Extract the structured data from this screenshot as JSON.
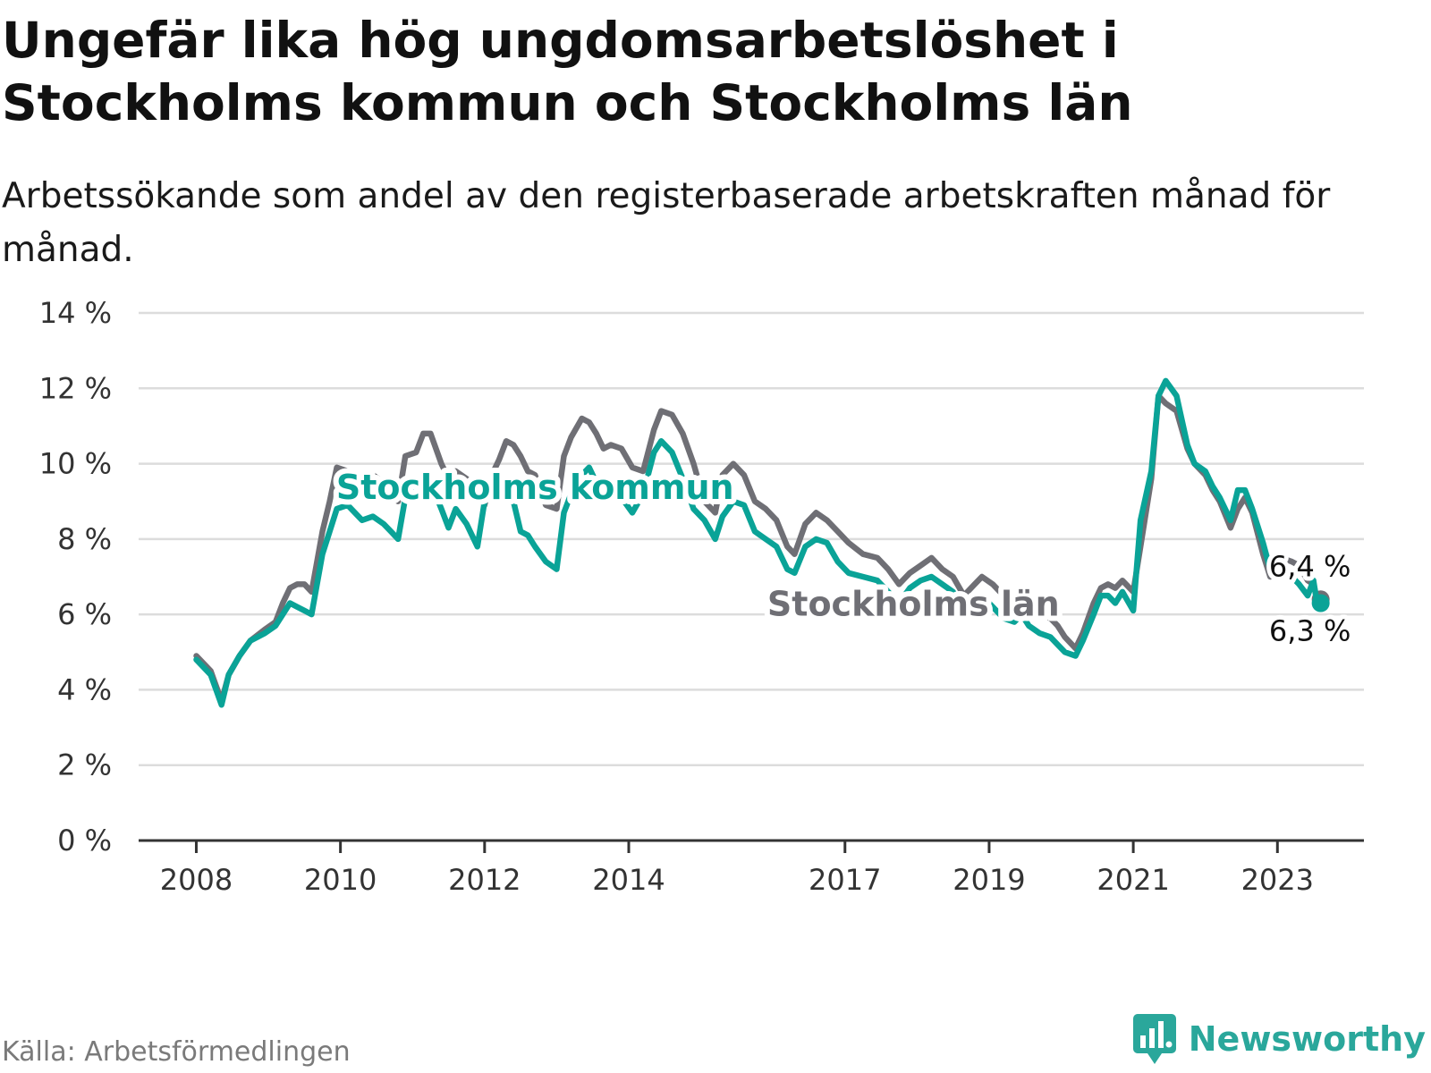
{
  "header": {
    "title": "Ungefär lika hög ungdomsarbetslöshet i Stockholms kommun och Stockholms län",
    "subtitle": "Arbetssökande som andel av den registerbaserade arbetskraften månad för månad."
  },
  "footer": {
    "source": "Källa: Arbetsförmedlingen",
    "brand": "Newsworthy"
  },
  "colors": {
    "kommun": "#0aa397",
    "lan": "#6f6f75",
    "grid": "#dcdcdc",
    "axis": "#333333",
    "brand": "#2aa79b"
  },
  "chart_data": {
    "type": "line",
    "title": "Ungefär lika hög ungdomsarbetslöshet i Stockholms kommun och Stockholms län",
    "xlabel": "",
    "ylabel": "",
    "x_unit": "year (decimal)",
    "xlim": [
      2007.2,
      2024.2
    ],
    "ylim": [
      0,
      14
    ],
    "yticks": [
      0,
      2,
      4,
      6,
      8,
      10,
      12,
      14
    ],
    "ytick_labels": [
      "0 %",
      "2 %",
      "4 %",
      "6 %",
      "8 %",
      "10 %",
      "12 %",
      "14 %"
    ],
    "xticks": [
      2008,
      2010,
      2012,
      2014,
      2017,
      2019,
      2021,
      2023
    ],
    "xtick_labels": [
      "2008",
      "2010",
      "2012",
      "2014",
      "2017",
      "2019",
      "2021",
      "2023"
    ],
    "grid": true,
    "series": [
      {
        "name": "Stockholms län",
        "label": "Stockholms län",
        "color": "#6f6f75",
        "end_label": "6,4 %",
        "x": [
          2008.0,
          2008.1,
          2008.2,
          2008.35,
          2008.45,
          2008.6,
          2008.75,
          2008.95,
          2009.1,
          2009.2,
          2009.3,
          2009.4,
          2009.5,
          2009.6,
          2009.75,
          2009.85,
          2009.95,
          2010.1,
          2010.2,
          2010.3,
          2010.45,
          2010.6,
          2010.7,
          2010.8,
          2010.9,
          2011.05,
          2011.15,
          2011.25,
          2011.4,
          2011.5,
          2011.6,
          2011.75,
          2011.9,
          2012.0,
          2012.1,
          2012.2,
          2012.3,
          2012.4,
          2012.5,
          2012.6,
          2012.7,
          2012.85,
          2013.0,
          2013.1,
          2013.2,
          2013.35,
          2013.45,
          2013.55,
          2013.65,
          2013.75,
          2013.9,
          2014.05,
          2014.2,
          2014.35,
          2014.45,
          2014.6,
          2014.75,
          2014.9,
          2015.05,
          2015.2,
          2015.3,
          2015.45,
          2015.6,
          2015.75,
          2015.9,
          2016.05,
          2016.2,
          2016.3,
          2016.45,
          2016.6,
          2016.75,
          2016.9,
          2017.05,
          2017.25,
          2017.45,
          2017.6,
          2017.75,
          2017.9,
          2018.05,
          2018.2,
          2018.35,
          2018.5,
          2018.65,
          2018.8,
          2018.9,
          2019.05,
          2019.2,
          2019.35,
          2019.45,
          2019.55,
          2019.7,
          2019.85,
          2019.95,
          2020.05,
          2020.2,
          2020.3,
          2020.45,
          2020.55,
          2020.65,
          2020.75,
          2020.85,
          2021.0,
          2021.1,
          2021.25,
          2021.35,
          2021.45,
          2021.6,
          2021.75,
          2021.85,
          2022.0,
          2022.1,
          2022.2,
          2022.35,
          2022.45,
          2022.55,
          2022.65,
          2022.8,
          2022.9,
          2023.05
        ],
        "values": [
          4.9,
          4.7,
          4.5,
          3.7,
          4.4,
          4.9,
          5.3,
          5.6,
          5.8,
          6.3,
          6.7,
          6.8,
          6.8,
          6.6,
          8.2,
          9.0,
          9.9,
          9.8,
          9.6,
          9.7,
          9.7,
          9.5,
          9.1,
          9.0,
          10.2,
          10.3,
          10.8,
          10.8,
          10.0,
          9.6,
          9.8,
          9.6,
          9.2,
          8.9,
          9.7,
          10.1,
          10.6,
          10.5,
          10.2,
          9.8,
          9.7,
          8.9,
          8.8,
          10.2,
          10.7,
          11.2,
          11.1,
          10.8,
          10.4,
          10.5,
          10.4,
          9.9,
          9.8,
          10.9,
          11.4,
          11.3,
          10.8,
          10.0,
          9.0,
          8.7,
          9.7,
          10.0,
          9.7,
          9.0,
          8.8,
          8.5,
          7.8,
          7.6,
          8.4,
          8.7,
          8.5,
          8.2,
          7.9,
          7.6,
          7.5,
          7.2,
          6.8,
          7.1,
          7.3,
          7.5,
          7.2,
          7.0,
          6.5,
          6.8,
          7.0,
          6.8,
          6.5,
          6.4,
          6.6,
          6.2,
          6.0,
          5.9,
          5.7,
          5.4,
          5.1,
          5.5,
          6.3,
          6.7,
          6.8,
          6.7,
          6.9,
          6.6,
          7.8,
          9.6,
          11.8,
          11.6,
          11.4,
          10.4,
          10.0,
          9.7,
          9.3,
          9.0,
          8.3,
          8.8,
          9.1,
          8.7,
          7.6,
          7.0,
          7.5
        ],
        "x_end": [
          2023.05,
          2023.2,
          2023.3,
          2023.42,
          2023.5,
          2023.55,
          2023.6
        ],
        "values_end": [
          7.5,
          7.4,
          7.3,
          6.9,
          6.8,
          6.4,
          6.4
        ]
      },
      {
        "name": "Stockholms kommun",
        "label": "Stockholms kommun",
        "color": "#0aa397",
        "end_label": "6,3 %",
        "x": [
          2008.0,
          2008.1,
          2008.2,
          2008.35,
          2008.45,
          2008.6,
          2008.75,
          2008.95,
          2009.1,
          2009.2,
          2009.3,
          2009.4,
          2009.5,
          2009.6,
          2009.75,
          2009.85,
          2009.95,
          2010.1,
          2010.2,
          2010.3,
          2010.45,
          2010.6,
          2010.7,
          2010.8,
          2010.9,
          2011.05,
          2011.15,
          2011.25,
          2011.4,
          2011.5,
          2011.6,
          2011.75,
          2011.9,
          2012.0,
          2012.1,
          2012.2,
          2012.3,
          2012.4,
          2012.5,
          2012.6,
          2012.7,
          2012.85,
          2013.0,
          2013.1,
          2013.2,
          2013.35,
          2013.45,
          2013.55,
          2013.65,
          2013.75,
          2013.9,
          2014.05,
          2014.2,
          2014.35,
          2014.45,
          2014.6,
          2014.75,
          2014.9,
          2015.05,
          2015.2,
          2015.3,
          2015.45,
          2015.6,
          2015.75,
          2015.9,
          2016.05,
          2016.2,
          2016.3,
          2016.45,
          2016.6,
          2016.75,
          2016.9,
          2017.05,
          2017.25,
          2017.45,
          2017.6,
          2017.75,
          2017.9,
          2018.05,
          2018.2,
          2018.35,
          2018.5,
          2018.65,
          2018.8,
          2018.9,
          2019.05,
          2019.2,
          2019.35,
          2019.45,
          2019.55,
          2019.7,
          2019.85,
          2019.95,
          2020.05,
          2020.2,
          2020.3,
          2020.45,
          2020.55,
          2020.65,
          2020.75,
          2020.85,
          2021.0,
          2021.1,
          2021.25,
          2021.35,
          2021.45,
          2021.6,
          2021.75,
          2021.85,
          2022.0,
          2022.1,
          2022.2,
          2022.35,
          2022.45,
          2022.55,
          2022.65,
          2022.8,
          2022.9,
          2023.05
        ],
        "values": [
          4.8,
          4.6,
          4.4,
          3.6,
          4.4,
          4.9,
          5.3,
          5.5,
          5.7,
          6.0,
          6.3,
          6.2,
          6.1,
          6.0,
          7.6,
          8.2,
          8.8,
          8.9,
          8.7,
          8.5,
          8.6,
          8.4,
          8.2,
          8.0,
          9.1,
          9.3,
          9.6,
          9.5,
          8.8,
          8.3,
          8.8,
          8.4,
          7.8,
          9.0,
          9.2,
          9.5,
          9.3,
          9.0,
          8.2,
          8.1,
          7.8,
          7.4,
          7.2,
          8.7,
          9.2,
          9.7,
          9.9,
          9.5,
          9.0,
          9.3,
          9.1,
          8.7,
          9.2,
          10.3,
          10.6,
          10.3,
          9.6,
          8.8,
          8.5,
          8.0,
          8.6,
          9.0,
          8.9,
          8.2,
          8.0,
          7.8,
          7.2,
          7.1,
          7.8,
          8.0,
          7.9,
          7.4,
          7.1,
          7.0,
          6.9,
          6.6,
          6.3,
          6.7,
          6.9,
          7.0,
          6.8,
          6.6,
          6.1,
          6.3,
          6.5,
          6.2,
          5.9,
          5.8,
          6.0,
          5.7,
          5.5,
          5.4,
          5.2,
          5.0,
          4.9,
          5.3,
          6.0,
          6.5,
          6.5,
          6.3,
          6.6,
          6.1,
          8.5,
          9.8,
          11.8,
          12.2,
          11.8,
          10.5,
          10.0,
          9.8,
          9.4,
          9.1,
          8.5,
          9.3,
          9.3,
          8.8,
          7.9,
          7.2,
          7.2
        ],
        "x_end": [
          2023.05,
          2023.2,
          2023.3,
          2023.42,
          2023.5,
          2023.55,
          2023.6
        ],
        "values_end": [
          7.2,
          7.0,
          6.8,
          6.5,
          6.9,
          6.3,
          6.3
        ]
      }
    ],
    "annotations": [
      {
        "text": "Stockholms kommun",
        "series": "Stockholms kommun"
      },
      {
        "text": "Stockholms län",
        "series": "Stockholms län"
      }
    ]
  }
}
